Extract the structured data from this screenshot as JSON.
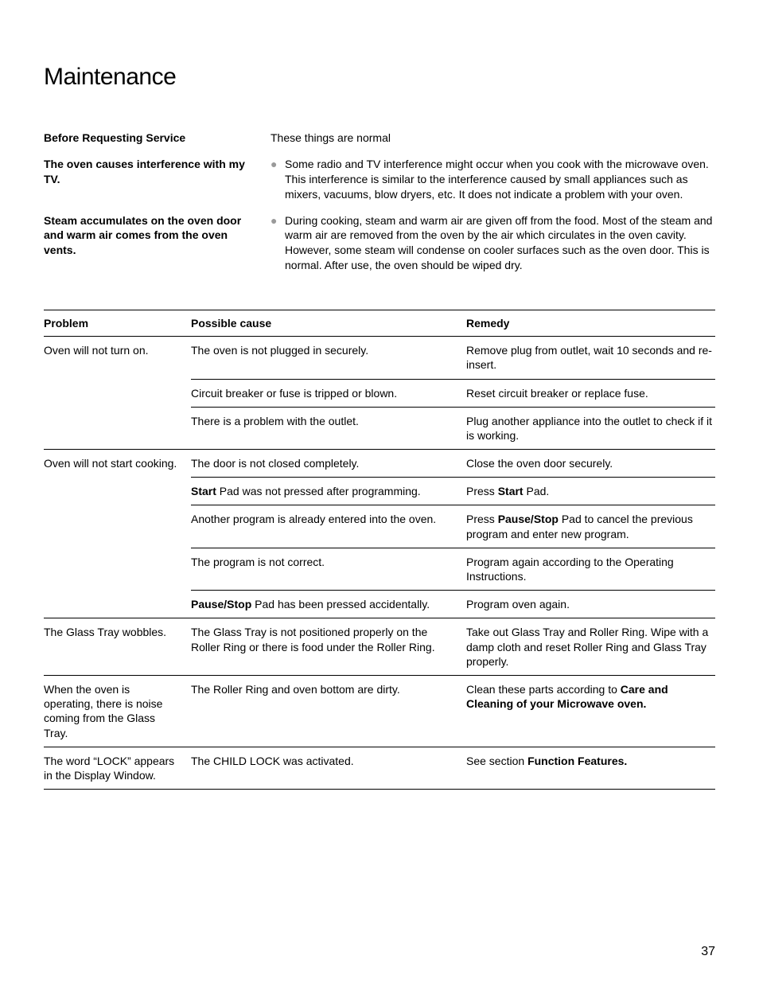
{
  "title": "Maintenance",
  "intro": {
    "before": "Before Requesting Service",
    "normal": "These things are normal",
    "items": [
      {
        "heading": "The oven causes interference with my TV.",
        "text": "Some radio and TV interference might occur when you cook with the microwave oven. This interference is similar to the interference caused by small appliances such as mixers, vacuums, blow dryers, etc. It does not indicate a problem with your oven."
      },
      {
        "heading": "Steam accumulates on the oven door and warm air comes from the oven vents.",
        "text": "During cooking, steam and warm air are given off from the food. Most of the steam and warm air are removed from the oven by the air which circulates in the oven cavity. However, some steam will condense on cooler surfaces such as the oven door. This is normal. After use, the oven should be wiped dry."
      }
    ]
  },
  "table": {
    "header": {
      "problem": "Problem",
      "cause": "Possible cause",
      "remedy": "Remedy"
    },
    "groups": [
      {
        "problem": "Oven will not turn on.",
        "rows": [
          {
            "cause": "The oven is not plugged in securely.",
            "remedy": "Remove plug from outlet, wait 10 seconds and re-insert."
          },
          {
            "cause": "Circuit breaker or fuse is tripped or blown.",
            "remedy": "Reset circuit breaker or replace fuse."
          },
          {
            "cause": "There is a problem with the outlet.",
            "remedy": "Plug another appliance into the outlet to check if it is working."
          }
        ]
      },
      {
        "problem": "Oven will not start cooking.",
        "rows": [
          {
            "cause": "The door is not closed completely.",
            "remedy": "Close the oven door securely."
          },
          {
            "cause_html": "<b>Start</b> Pad was not pressed after programming.",
            "remedy_html": "Press <b>Start</b> Pad."
          },
          {
            "cause": "Another program is already entered into the oven.",
            "remedy_html": "Press <b>Pause/Stop</b> Pad to cancel the previous program and enter new program."
          },
          {
            "cause": "The program is not correct.",
            "remedy": "Program again according to the Operating Instructions."
          },
          {
            "cause_html": "<b>Pause/Stop</b> Pad has been pressed accidentally.",
            "remedy": "Program oven again."
          }
        ]
      },
      {
        "problem": "The Glass Tray wobbles.",
        "rows": [
          {
            "cause": "The Glass Tray is not positioned properly on the Roller Ring or there is food under the Roller Ring.",
            "remedy": "Take out Glass Tray and Roller Ring. Wipe with a damp cloth and reset Roller Ring and Glass Tray properly."
          }
        ]
      },
      {
        "problem": "When the oven is operating, there is noise coming from the Glass Tray.",
        "rows": [
          {
            "cause": "The Roller Ring and oven bottom are dirty.",
            "remedy_html": "Clean these parts according to <b>Care and Cleaning of your Microwave oven.</b>"
          }
        ]
      },
      {
        "problem": "The word “LOCK” appears in the Display Window.",
        "rows": [
          {
            "cause": "The CHILD LOCK was activated.",
            "remedy_html": "See section <b>Function Features.</b>"
          }
        ]
      }
    ]
  },
  "page_number": "37",
  "colors": {
    "text": "#000000",
    "bg": "#ffffff",
    "bullet": "#9a9a9a",
    "rule": "#000000"
  }
}
